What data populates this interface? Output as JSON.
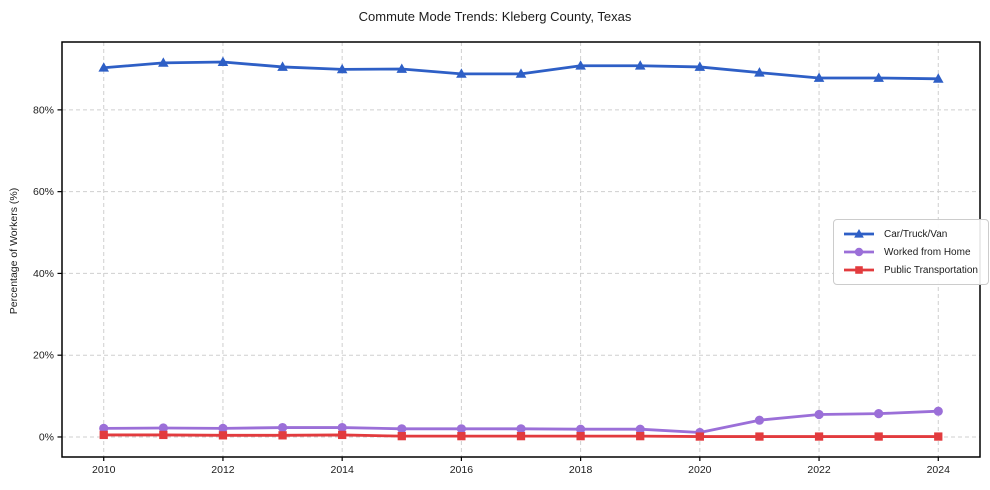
{
  "chart_data": {
    "type": "line",
    "title": "Commute Mode Trends: Kleberg County, Texas",
    "xlabel": "",
    "ylabel": "Percentage of Workers (%)",
    "x": [
      2010,
      2011,
      2012,
      2013,
      2014,
      2015,
      2016,
      2017,
      2018,
      2019,
      2020,
      2021,
      2022,
      2023,
      2024
    ],
    "series": [
      {
        "name": "Car/Truck/Van",
        "color": "#2e5fc6",
        "marker": "triangle",
        "values": [
          90.3,
          91.5,
          91.7,
          90.5,
          89.9,
          90.0,
          88.8,
          88.8,
          90.8,
          90.8,
          90.5,
          89.1,
          87.8,
          87.8,
          87.6
        ]
      },
      {
        "name": "Worked from Home",
        "color": "#9b6fd8",
        "marker": "circle",
        "values": [
          2.1,
          2.2,
          2.1,
          2.3,
          2.3,
          2.0,
          2.0,
          2.0,
          1.9,
          1.9,
          1.1,
          4.1,
          5.5,
          5.7,
          6.3
        ]
      },
      {
        "name": "Public Transportation",
        "color": "#e23b3e",
        "marker": "square",
        "values": [
          0.5,
          0.5,
          0.4,
          0.4,
          0.5,
          0.2,
          0.2,
          0.2,
          0.2,
          0.2,
          0.1,
          0.1,
          0.1,
          0.1,
          0.1
        ]
      }
    ],
    "xlim": [
      2009.3,
      2024.7
    ],
    "ylim": [
      -4.9,
      96.6
    ],
    "xticks": [
      2010,
      2012,
      2014,
      2016,
      2018,
      2020,
      2022,
      2024
    ],
    "yticks": [
      0,
      20,
      40,
      60,
      80
    ],
    "ytick_suffix": "%",
    "grid": true,
    "legend_position": "center right",
    "colors": {
      "grid": "#cfcfcf",
      "axis_border": "#000000",
      "text": "#1c1c1c",
      "legend_border": "#cccccc"
    }
  }
}
